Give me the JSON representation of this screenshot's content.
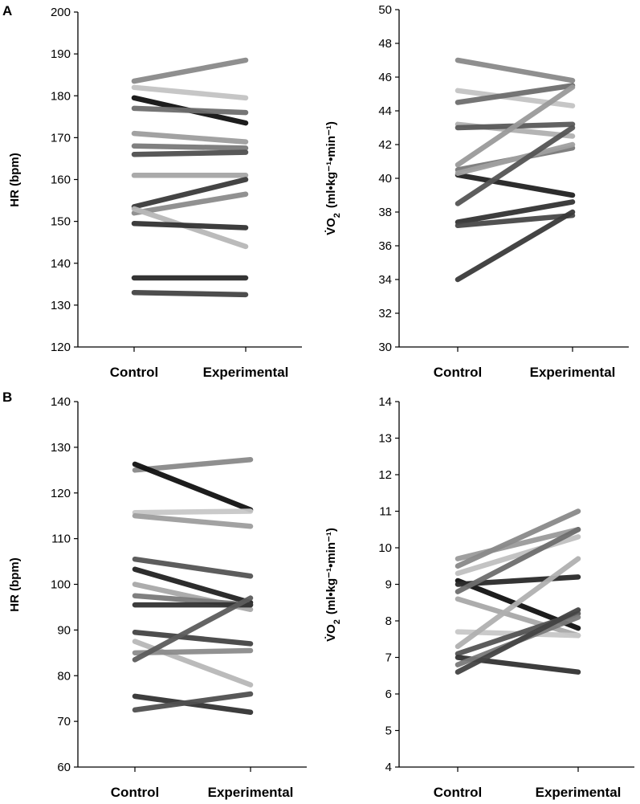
{
  "panels": {
    "A": "A",
    "B": "B"
  },
  "chart_data": [
    {
      "type": "line",
      "panel": "A",
      "categories": [
        "Control",
        "Experimental"
      ],
      "ylabel": "HR (bpm)",
      "ylim": [
        120,
        200
      ],
      "yticks": [
        "120",
        "130",
        "140",
        "150",
        "160",
        "170",
        "180",
        "190",
        "200"
      ],
      "series": [
        {
          "name": "s1",
          "values": [
            183.5,
            188.5
          ],
          "color": "#8a8a8a"
        },
        {
          "name": "s2",
          "values": [
            182,
            179.5
          ],
          "color": "#c4c4c4"
        },
        {
          "name": "s3",
          "values": [
            179.5,
            173.5
          ],
          "color": "#111111"
        },
        {
          "name": "s4",
          "values": [
            177,
            176
          ],
          "color": "#6e6e6e"
        },
        {
          "name": "s5",
          "values": [
            171,
            169
          ],
          "color": "#9e9e9e"
        },
        {
          "name": "s6",
          "values": [
            168,
            167.5
          ],
          "color": "#7a7a7a"
        },
        {
          "name": "s7",
          "values": [
            166,
            166.5
          ],
          "color": "#505050"
        },
        {
          "name": "s8",
          "values": [
            161,
            161
          ],
          "color": "#a6a6a6"
        },
        {
          "name": "s9",
          "values": [
            153.5,
            160
          ],
          "color": "#3a3a3a"
        },
        {
          "name": "s10",
          "values": [
            152,
            156.5
          ],
          "color": "#8c8c8c"
        },
        {
          "name": "s11",
          "values": [
            153,
            144
          ],
          "color": "#b8b8b8"
        },
        {
          "name": "s12",
          "values": [
            149.5,
            148.5
          ],
          "color": "#333333"
        },
        {
          "name": "s13",
          "values": [
            136.5,
            136.5
          ],
          "color": "#2a2a2a"
        },
        {
          "name": "s14",
          "values": [
            133,
            132.5
          ],
          "color": "#444444"
        }
      ]
    },
    {
      "type": "line",
      "panel": "A",
      "categories": [
        "Control",
        "Experimental"
      ],
      "ylabel_main": "V̇O",
      "ylabel_sub": "2",
      "ylabel_units": "(ml•kg⁻¹•min⁻¹)",
      "ylim": [
        30,
        50
      ],
      "yticks": [
        "30",
        "32",
        "34",
        "36",
        "38",
        "40",
        "42",
        "44",
        "46",
        "48",
        "50"
      ],
      "series": [
        {
          "name": "s1",
          "values": [
            47,
            45.8
          ],
          "color": "#8a8a8a"
        },
        {
          "name": "s2",
          "values": [
            45.2,
            44.3
          ],
          "color": "#c4c4c4"
        },
        {
          "name": "s3",
          "values": [
            44.5,
            45.5
          ],
          "color": "#6e6e6e"
        },
        {
          "name": "s4",
          "values": [
            43.2,
            42.5
          ],
          "color": "#b0b0b0"
        },
        {
          "name": "s5",
          "values": [
            43,
            43.2
          ],
          "color": "#5a5a5a"
        },
        {
          "name": "s6",
          "values": [
            40.8,
            45.4
          ],
          "color": "#9a9a9a"
        },
        {
          "name": "s7",
          "values": [
            40.5,
            41.8
          ],
          "color": "#7a7a7a"
        },
        {
          "name": "s8",
          "values": [
            40.2,
            39
          ],
          "color": "#222222"
        },
        {
          "name": "s9",
          "values": [
            40.3,
            42
          ],
          "color": "#a0a0a0"
        },
        {
          "name": "s10",
          "values": [
            38.5,
            43
          ],
          "color": "#555555"
        },
        {
          "name": "s11",
          "values": [
            37.4,
            38.6
          ],
          "color": "#333333"
        },
        {
          "name": "s12",
          "values": [
            37.2,
            37.8
          ],
          "color": "#484848"
        },
        {
          "name": "s13",
          "values": [
            34,
            38
          ],
          "color": "#3a3a3a"
        }
      ]
    },
    {
      "type": "line",
      "panel": "B",
      "categories": [
        "Control",
        "Experimental"
      ],
      "ylabel": "HR (bpm)",
      "ylim": [
        60,
        140
      ],
      "yticks": [
        "60",
        "70",
        "80",
        "90",
        "100",
        "110",
        "120",
        "130",
        "140"
      ],
      "series": [
        {
          "name": "s1",
          "values": [
            125,
            127.3
          ],
          "color": "#8a8a8a"
        },
        {
          "name": "s2",
          "values": [
            126.3,
            116.3
          ],
          "color": "#111111"
        },
        {
          "name": "s3",
          "values": [
            115.7,
            116
          ],
          "color": "#c8c8c8"
        },
        {
          "name": "s4",
          "values": [
            115,
            112.7
          ],
          "color": "#9e9e9e"
        },
        {
          "name": "s5",
          "values": [
            105.5,
            101.8
          ],
          "color": "#555555"
        },
        {
          "name": "s6",
          "values": [
            103.3,
            96
          ],
          "color": "#222222"
        },
        {
          "name": "s7",
          "values": [
            100,
            94.5
          ],
          "color": "#a8a8a8"
        },
        {
          "name": "s8",
          "values": [
            97.5,
            95.5
          ],
          "color": "#7a7a7a"
        },
        {
          "name": "s9",
          "values": [
            95.5,
            95.5
          ],
          "color": "#333333"
        },
        {
          "name": "s10",
          "values": [
            89.5,
            87
          ],
          "color": "#444444"
        },
        {
          "name": "s11",
          "values": [
            87.5,
            78
          ],
          "color": "#b8b8b8"
        },
        {
          "name": "s12",
          "values": [
            85,
            85.5
          ],
          "color": "#8c8c8c"
        },
        {
          "name": "s13",
          "values": [
            83.5,
            97
          ],
          "color": "#5c5c5c"
        },
        {
          "name": "s14",
          "values": [
            75.5,
            72
          ],
          "color": "#333333"
        },
        {
          "name": "s15",
          "values": [
            72.5,
            76
          ],
          "color": "#505050"
        }
      ]
    },
    {
      "type": "line",
      "panel": "B",
      "categories": [
        "Control",
        "Experimental"
      ],
      "ylabel_main": "V̇O",
      "ylabel_sub": "2",
      "ylabel_units": "(ml•kg⁻¹•min⁻¹)",
      "ylim": [
        4,
        14
      ],
      "yticks": [
        "4",
        "5",
        "6",
        "7",
        "8",
        "9",
        "10",
        "11",
        "12",
        "13",
        "14"
      ],
      "series": [
        {
          "name": "s1",
          "values": [
            9.7,
            10.5
          ],
          "color": "#9a9a9a"
        },
        {
          "name": "s2",
          "values": [
            9.5,
            11
          ],
          "color": "#8a8a8a"
        },
        {
          "name": "s3",
          "values": [
            9.3,
            10.3
          ],
          "color": "#c0c0c0"
        },
        {
          "name": "s4",
          "values": [
            9.1,
            7.8
          ],
          "color": "#111111"
        },
        {
          "name": "s5",
          "values": [
            9,
            9.2
          ],
          "color": "#2a2a2a"
        },
        {
          "name": "s6",
          "values": [
            8.8,
            10.5
          ],
          "color": "#6e6e6e"
        },
        {
          "name": "s7",
          "values": [
            8.6,
            7.6
          ],
          "color": "#a8a8a8"
        },
        {
          "name": "s8",
          "values": [
            7.7,
            7.6
          ],
          "color": "#c8c8c8"
        },
        {
          "name": "s9",
          "values": [
            7.3,
            9.7
          ],
          "color": "#b0b0b0"
        },
        {
          "name": "s10",
          "values": [
            7.1,
            8.2
          ],
          "color": "#555555"
        },
        {
          "name": "s11",
          "values": [
            7,
            6.6
          ],
          "color": "#333333"
        },
        {
          "name": "s12",
          "values": [
            6.8,
            8.1
          ],
          "color": "#7a7a7a"
        },
        {
          "name": "s13",
          "values": [
            6.6,
            8.3
          ],
          "color": "#444444"
        }
      ]
    }
  ]
}
